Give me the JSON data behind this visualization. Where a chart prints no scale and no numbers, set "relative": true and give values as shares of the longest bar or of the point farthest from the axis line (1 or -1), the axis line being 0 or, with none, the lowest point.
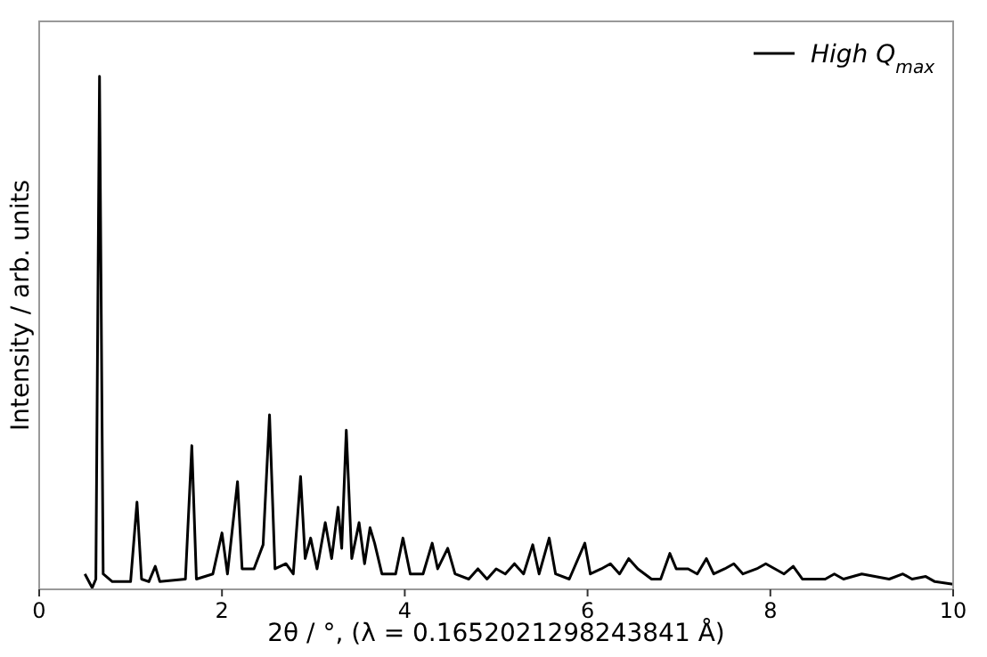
{
  "chart_data": {
    "type": "line",
    "relative": true,
    "xlabel": "2θ / °, (λ = 0.1652021298243841 Å)",
    "ylabel": "Intensity / arb. units",
    "xlim": [
      0,
      10
    ],
    "xticks": [
      0,
      2,
      4,
      6,
      8,
      10
    ],
    "tick_labels": "x",
    "legend": "top right",
    "grid": false,
    "marker": "none",
    "line_style": "solid",
    "series": [
      {
        "name": "High Q$_{max}$",
        "color": "#000000",
        "x": [
          0.5,
          0.58,
          0.62,
          0.66,
          0.7,
          0.8,
          1.0,
          1.07,
          1.12,
          1.2,
          1.27,
          1.32,
          1.6,
          1.67,
          1.72,
          1.9,
          2.0,
          2.06,
          2.17,
          2.22,
          2.35,
          2.45,
          2.52,
          2.58,
          2.7,
          2.78,
          2.86,
          2.91,
          2.97,
          3.04,
          3.13,
          3.2,
          3.27,
          3.31,
          3.36,
          3.42,
          3.5,
          3.56,
          3.62,
          3.67,
          3.75,
          3.9,
          3.98,
          4.06,
          4.2,
          4.3,
          4.36,
          4.47,
          4.55,
          4.7,
          4.8,
          4.9,
          5.0,
          5.1,
          5.2,
          5.3,
          5.4,
          5.47,
          5.58,
          5.65,
          5.8,
          5.97,
          6.03,
          6.15,
          6.25,
          6.35,
          6.45,
          6.55,
          6.7,
          6.8,
          6.9,
          6.97,
          7.1,
          7.2,
          7.3,
          7.38,
          7.5,
          7.6,
          7.7,
          7.85,
          7.95,
          8.05,
          8.15,
          8.25,
          8.35,
          8.6,
          8.7,
          8.8,
          9.0,
          9.3,
          9.45,
          9.55,
          9.7,
          9.8,
          10.0
        ],
        "values": [
          0.03,
          0.003,
          0.02,
          1.0,
          0.03,
          0.015,
          0.015,
          0.17,
          0.02,
          0.015,
          0.045,
          0.015,
          0.02,
          0.28,
          0.02,
          0.03,
          0.11,
          0.03,
          0.21,
          0.04,
          0.04,
          0.087,
          0.34,
          0.04,
          0.05,
          0.03,
          0.22,
          0.06,
          0.1,
          0.04,
          0.13,
          0.06,
          0.16,
          0.08,
          0.31,
          0.06,
          0.13,
          0.05,
          0.12,
          0.09,
          0.03,
          0.03,
          0.1,
          0.03,
          0.03,
          0.09,
          0.04,
          0.08,
          0.03,
          0.02,
          0.04,
          0.02,
          0.04,
          0.03,
          0.05,
          0.03,
          0.087,
          0.03,
          0.1,
          0.03,
          0.02,
          0.09,
          0.03,
          0.04,
          0.05,
          0.03,
          0.06,
          0.04,
          0.02,
          0.02,
          0.07,
          0.04,
          0.04,
          0.03,
          0.06,
          0.03,
          0.04,
          0.05,
          0.03,
          0.04,
          0.05,
          0.04,
          0.03,
          0.045,
          0.02,
          0.02,
          0.03,
          0.02,
          0.03,
          0.02,
          0.03,
          0.02,
          0.025,
          0.015,
          0.01
        ]
      }
    ]
  }
}
